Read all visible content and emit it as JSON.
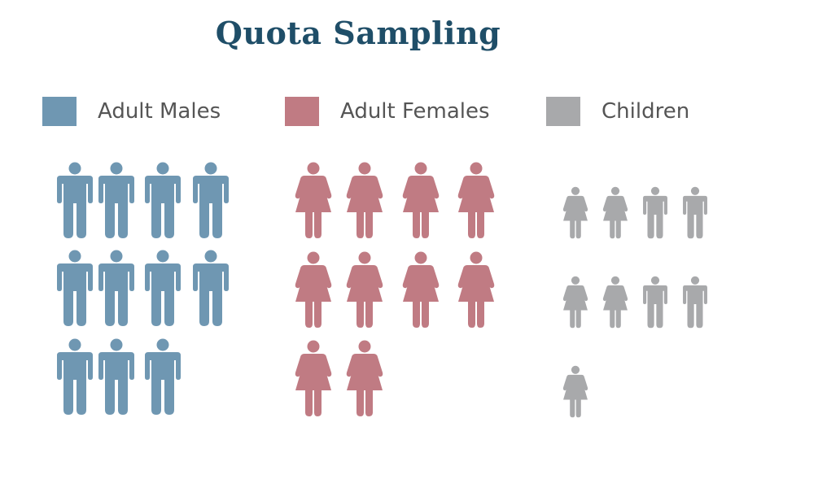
{
  "title": "Quota Sampling",
  "legend": [
    {
      "label": "Adult Males",
      "color": "#6f97b2"
    },
    {
      "label": "Adult Females",
      "color": "#c07b83"
    },
    {
      "label": "Children",
      "color": "#a8a9ab"
    }
  ],
  "groups": [
    {
      "name": "adult-males",
      "count": 11,
      "color": "#6f97b2",
      "figure": "male-figure-icon"
    },
    {
      "name": "adult-females",
      "count": 10,
      "color": "#c07b83",
      "figure": "female-figure-icon"
    },
    {
      "name": "children",
      "count": 9,
      "color": "#a8a9ab",
      "figure": "child-figure-icon",
      "pattern": [
        "girl",
        "girl",
        "boy",
        "boy",
        "girl",
        "girl",
        "boy",
        "boy",
        "girl"
      ]
    }
  ]
}
